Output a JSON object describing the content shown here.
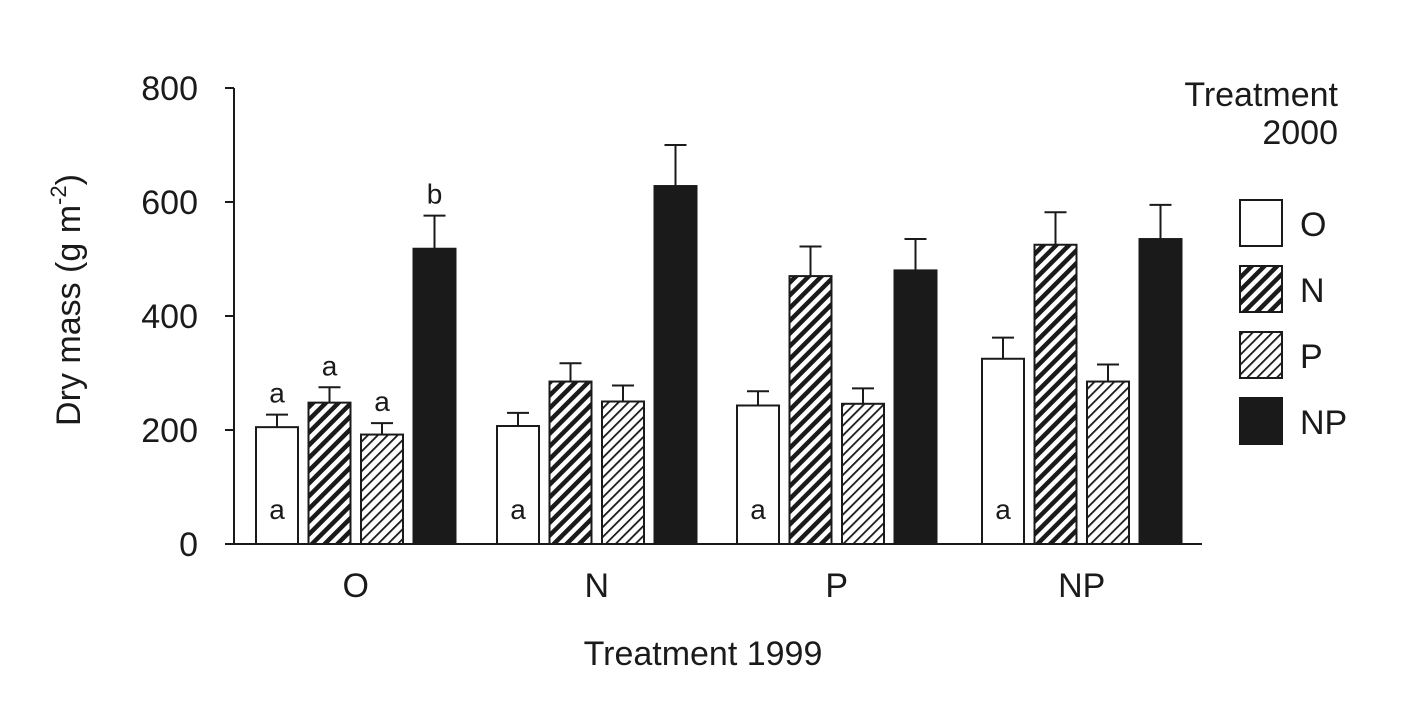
{
  "chart_data": {
    "type": "bar",
    "xlabel": "Treatment 1999",
    "ylabel": "Dry mass (g m",
    "ylabel_sup": "-2",
    "ylabel_close": ")",
    "ylim": [
      0,
      800
    ],
    "yticks": [
      0,
      200,
      400,
      600,
      800
    ],
    "ytick_labels": [
      "0",
      "200",
      "400",
      "600",
      "800"
    ],
    "categories": [
      "O",
      "N",
      "P",
      "NP"
    ],
    "legend": {
      "title_line1": "Treatment",
      "title_line2": "2000",
      "placement": "right",
      "entries": [
        "O",
        "N",
        "P",
        "NP"
      ]
    },
    "series": [
      {
        "name": "O",
        "fill": "white",
        "values": [
          205,
          207,
          243,
          325
        ],
        "errors": [
          22,
          23,
          25,
          37
        ],
        "top_labels": [
          "a",
          "",
          "",
          ""
        ],
        "inner_labels": [
          "a",
          "a",
          "a",
          "a"
        ]
      },
      {
        "name": "N",
        "fill": "dense-hatch",
        "values": [
          248,
          285,
          470,
          525
        ],
        "errors": [
          27,
          32,
          52,
          57
        ],
        "top_labels": [
          "a",
          "",
          "",
          ""
        ],
        "inner_labels": [
          "",
          "",
          "",
          ""
        ]
      },
      {
        "name": "P",
        "fill": "light-hatch",
        "values": [
          192,
          250,
          246,
          285
        ],
        "errors": [
          20,
          28,
          27,
          30
        ],
        "top_labels": [
          "a",
          "",
          "",
          ""
        ],
        "inner_labels": [
          "",
          "",
          "",
          ""
        ]
      },
      {
        "name": "NP",
        "fill": "black",
        "values": [
          518,
          628,
          480,
          535
        ],
        "errors": [
          58,
          72,
          55,
          60
        ],
        "top_labels": [
          "b",
          "",
          "",
          ""
        ],
        "inner_labels": [
          "",
          "",
          "",
          ""
        ]
      }
    ],
    "colors": {
      "ink": "#1a1a1a",
      "background": "#ffffff"
    }
  }
}
